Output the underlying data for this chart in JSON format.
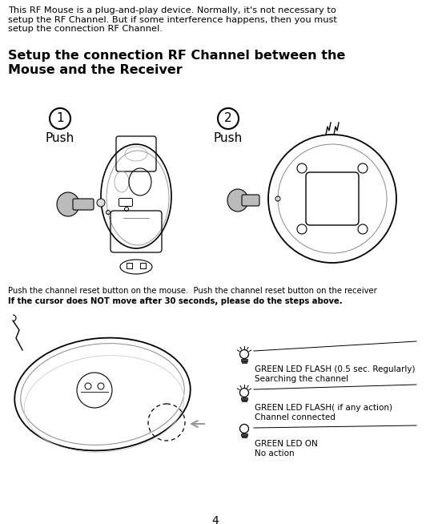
{
  "bg_color": "#ffffff",
  "body_text": "This RF Mouse is a plug-and-play device. Normally, it's not necessary to\nsetup the RF Channel. But if some interference happens, then you must\nsetup the connection RF Channel.",
  "heading": "Setup the connection RF Channel between the\nMouse and the Receiver",
  "caption1": "Push the channel reset button on the mouse.  Push the channel reset button on the receiver",
  "caption2": "If the cursor does NOT move after 30 seconds, please do the steps above.",
  "led1_text1": "GREEN LED FLASH (0.5 sec. Regularly)",
  "led1_text2": "Searching the channel",
  "led2_text1": "GREEN LED FLASH( if any action)",
  "led2_text2": "Channel connected",
  "led3_text1": "GREEN LED ON",
  "led3_text2": "No action",
  "page_num": "4"
}
